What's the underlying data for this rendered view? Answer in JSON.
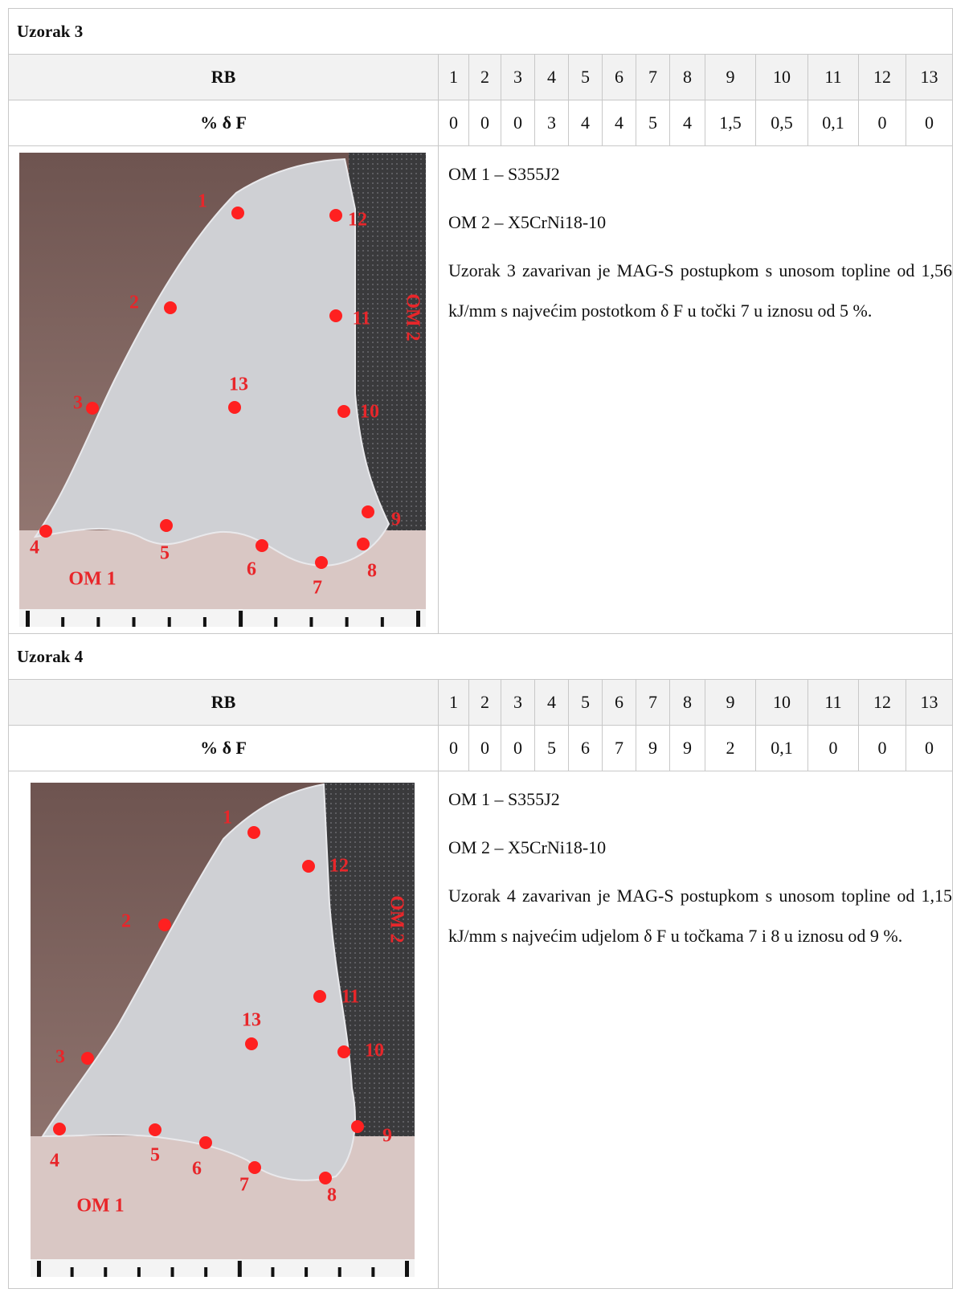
{
  "samples": [
    {
      "title": "Uzorak 3",
      "table": {
        "header": "RB",
        "points": [
          "1",
          "2",
          "3",
          "4",
          "5",
          "6",
          "7",
          "8",
          "9",
          "10",
          "11",
          "12",
          "13"
        ],
        "row_label": "% δ F",
        "values": [
          "0",
          "0",
          "0",
          "3",
          "4",
          "4",
          "5",
          "4",
          "1,5",
          "0,5",
          "0,1",
          "0",
          "0"
        ]
      },
      "figure": {
        "points": [
          "1",
          "2",
          "3",
          "4",
          "5",
          "6",
          "7",
          "8",
          "9",
          "10",
          "11",
          "12",
          "13"
        ],
        "base_label": "OM 1",
        "side_label": "OM 2"
      },
      "description": [
        "OM 1 – S355J2",
        "OM 2 – X5CrNi18-10",
        "Uzorak 3 zavarivan je MAG-S postupkom s unosom topline od 1,56 kJ/mm s najvećim postotkom δ F u točki 7 u iznosu od 5 %."
      ]
    },
    {
      "title": "Uzorak 4",
      "table": {
        "header": "RB",
        "points": [
          "1",
          "2",
          "3",
          "4",
          "5",
          "6",
          "7",
          "8",
          "9",
          "10",
          "11",
          "12",
          "13"
        ],
        "row_label": "% δ F",
        "values": [
          "0",
          "0",
          "0",
          "5",
          "6",
          "7",
          "9",
          "9",
          "2",
          "0,1",
          "0",
          "0",
          "0"
        ]
      },
      "figure": {
        "points": [
          "1",
          "2",
          "3",
          "4",
          "5",
          "6",
          "7",
          "8",
          "9",
          "10",
          "11",
          "12",
          "13"
        ],
        "base_label": "OM 1",
        "side_label": "OM 2"
      },
      "description": [
        "OM 1 – S355J2",
        "OM 2 – X5CrNi18-10",
        "Uzorak 4 zavarivan je MAG-S postupkom s unosom topline od 1,15 kJ/mm s najvećim udjelom δ F u točkama 7 i 8 u iznosu od 9 %."
      ]
    }
  ]
}
